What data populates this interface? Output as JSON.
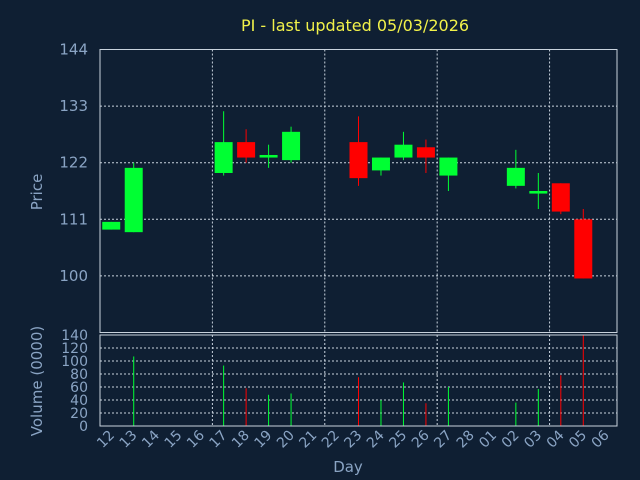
{
  "chart_data": {
    "type": "candlestick",
    "title": "PI - last updated 05/03/2026",
    "price_panel": {
      "ylabel": "Price",
      "ylim": [
        89,
        144
      ],
      "yticks": [
        100,
        111,
        122,
        133,
        144
      ],
      "grid": true
    },
    "volume_panel": {
      "ylabel": "Volume (0000)",
      "ylim": [
        0,
        140
      ],
      "yticks": [
        0,
        20,
        40,
        60,
        80,
        100,
        120,
        140
      ],
      "grid": true
    },
    "xlabel": "Day",
    "x_tick_labels": [
      "12",
      "13",
      "14",
      "15",
      "16",
      "17",
      "18",
      "19",
      "20",
      "21",
      "22",
      "23",
      "24",
      "25",
      "26",
      "27",
      "28",
      "01",
      "02",
      "03",
      "04",
      "05",
      "06"
    ],
    "colors": {
      "up": "#00ff33",
      "down": "#ff0000",
      "title": "#f2f24a",
      "text": "#8aa4c4",
      "background": "#0f1f33"
    },
    "candles": [
      {
        "day": "12",
        "open": 109,
        "high": 110.5,
        "low": 109,
        "close": 110.5,
        "volume": 0
      },
      {
        "day": "13",
        "open": 108.5,
        "high": 122,
        "low": 108.5,
        "close": 121,
        "volume": 107
      },
      {
        "day": "17",
        "open": 120,
        "high": 132,
        "low": 119.5,
        "close": 126,
        "volume": 93
      },
      {
        "day": "18",
        "open": 126,
        "high": 128.5,
        "low": 122,
        "close": 123,
        "volume": 58
      },
      {
        "day": "19",
        "open": 123,
        "high": 125.5,
        "low": 121,
        "close": 123.5,
        "volume": 48
      },
      {
        "day": "20",
        "open": 122.5,
        "high": 129,
        "low": 122,
        "close": 128,
        "volume": 50
      },
      {
        "day": "23",
        "open": 126,
        "high": 131,
        "low": 117.5,
        "close": 119,
        "volume": 75
      },
      {
        "day": "24",
        "open": 120.5,
        "high": 123,
        "low": 119.5,
        "close": 123,
        "volume": 40
      },
      {
        "day": "25",
        "open": 123,
        "high": 128,
        "low": 122.5,
        "close": 125.5,
        "volume": 67
      },
      {
        "day": "26",
        "open": 125,
        "high": 126.5,
        "low": 120,
        "close": 123,
        "volume": 35
      },
      {
        "day": "27",
        "open": 119.5,
        "high": 123,
        "low": 116.5,
        "close": 123,
        "volume": 60
      },
      {
        "day": "02",
        "open": 117.5,
        "high": 124.5,
        "low": 117,
        "close": 121,
        "volume": 36
      },
      {
        "day": "03",
        "open": 116,
        "high": 120,
        "low": 113,
        "close": 116.5,
        "volume": 57
      },
      {
        "day": "04",
        "open": 118,
        "high": 118,
        "low": 112,
        "close": 112.5,
        "volume": 78
      },
      {
        "day": "05",
        "open": 111,
        "high": 113,
        "low": 99.5,
        "close": 99.5,
        "volume": 140
      }
    ]
  }
}
